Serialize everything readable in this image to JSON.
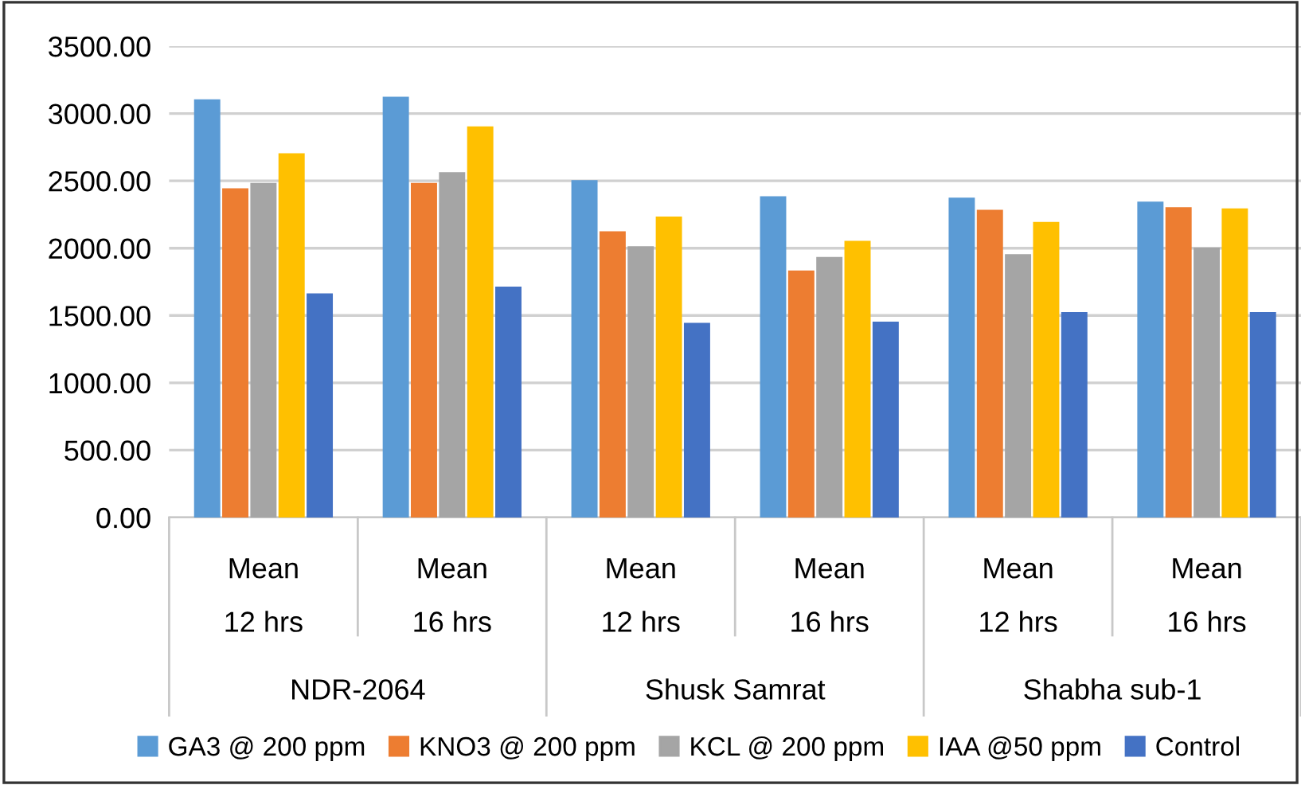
{
  "chart_data": {
    "type": "bar",
    "categories": [
      "Mean\n\n12 hrs",
      "Mean\n\n16 hrs",
      "Mean\n\n12 hrs",
      "Mean\n\n16 hrs",
      "Mean\n\n12 hrs",
      "Mean\n\n16 hrs"
    ],
    "annotations": [
      "NDR-2064",
      "Shusk Samrat",
      "Shabha sub-1"
    ],
    "series": [
      {
        "name": "GA3 @ 200 ppm",
        "color": "#5b9bd5",
        "values": [
          3100,
          3120,
          2500,
          2380,
          2370,
          2340
        ]
      },
      {
        "name": "KNO3 @ 200 ppm",
        "color": "#ed7d31",
        "values": [
          2440,
          2480,
          2120,
          1830,
          2280,
          2300
        ]
      },
      {
        "name": "KCL @ 200 ppm",
        "color": "#a5a5a5",
        "values": [
          2480,
          2560,
          2010,
          1930,
          1950,
          2000
        ]
      },
      {
        "name": "IAA @50 ppm",
        "color": "#ffc000",
        "values": [
          2700,
          2900,
          2230,
          2050,
          2190,
          2290
        ]
      },
      {
        "name": "Control",
        "color": "#4472c4",
        "values": [
          1660,
          1710,
          1440,
          1450,
          1520,
          1520
        ]
      }
    ],
    "ylim": [
      0,
      3500
    ],
    "yticks": [
      {
        "value": 0,
        "label": "0.00"
      },
      {
        "value": 500,
        "label": "500.00"
      },
      {
        "value": 1000,
        "label": "1000.00"
      },
      {
        "value": 1500,
        "label": "1500.00"
      },
      {
        "value": 2000,
        "label": "2000.00"
      },
      {
        "value": 2500,
        "label": "2500.00"
      },
      {
        "value": 3000,
        "label": "3000.00"
      },
      {
        "value": 3500,
        "label": "3500.00"
      }
    ],
    "grid": "y",
    "legend": "bottom"
  }
}
